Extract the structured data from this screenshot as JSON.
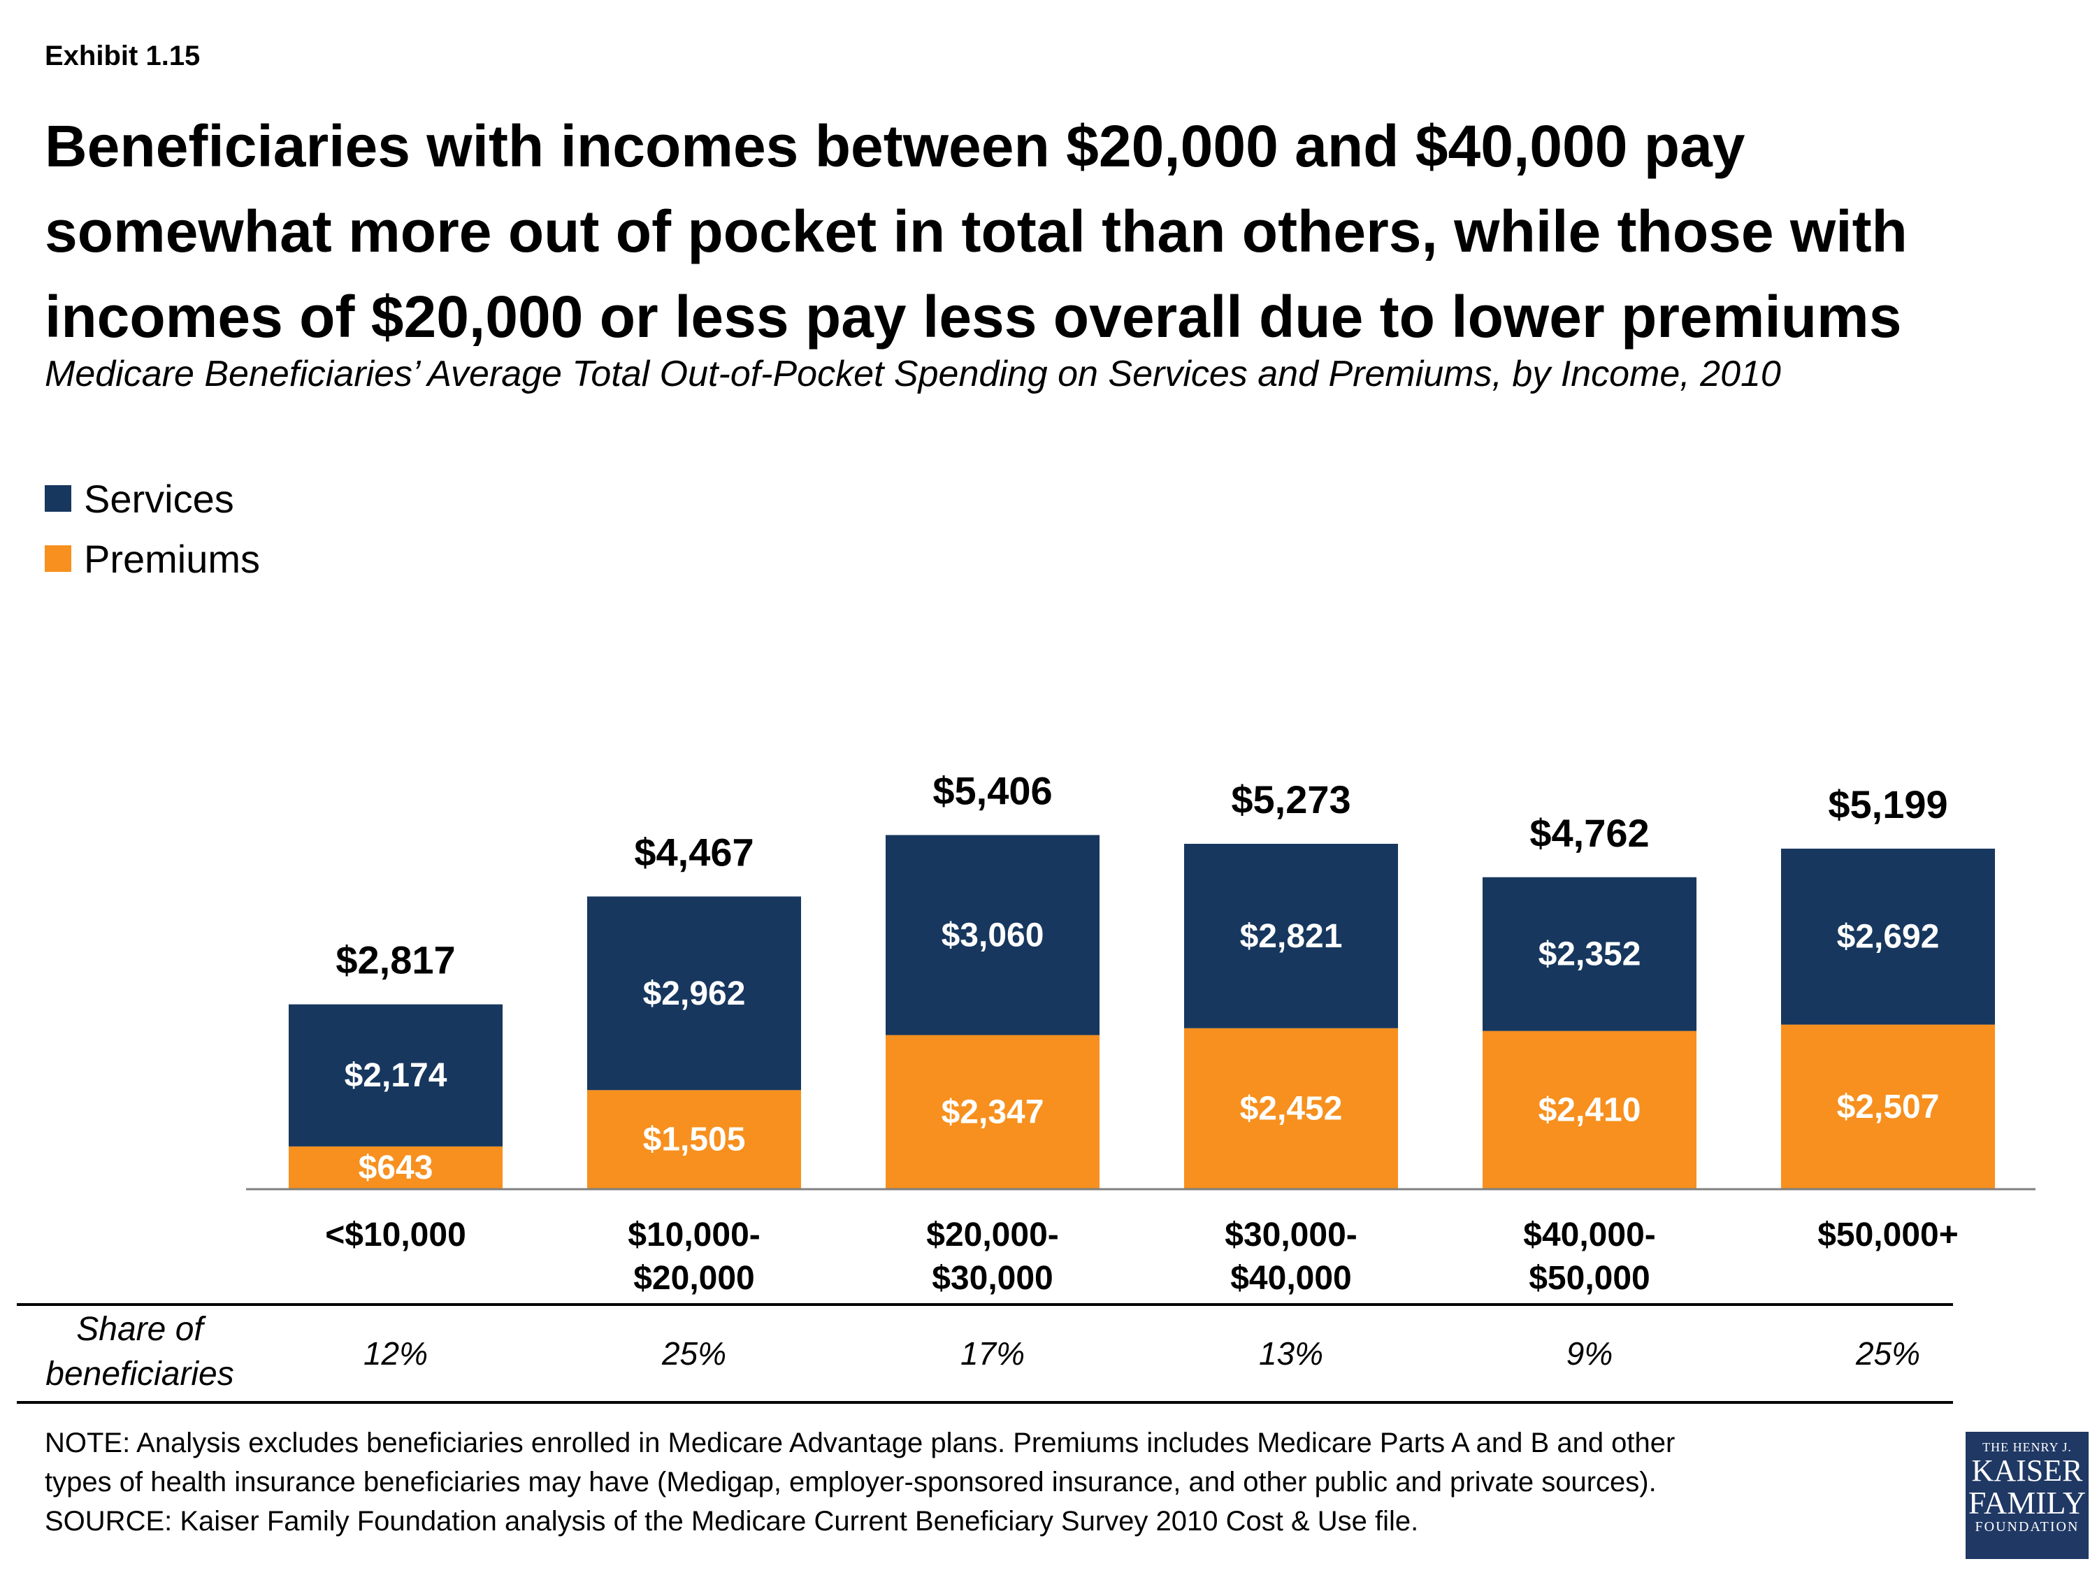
{
  "exhibit": "Exhibit 1.15",
  "title_lines": [
    "Beneficiaries with incomes between $20,000 and $40,000 pay",
    "somewhat more out of pocket in total than others, while those with",
    "incomes of $20,000 or less pay less overall due to lower premiums"
  ],
  "subtitle": "Medicare Beneficiaries’ Average Total Out-of-Pocket Spending on Services and Premiums, by Income, 2010",
  "legend": {
    "services": "Services",
    "premiums": "Premiums"
  },
  "colors": {
    "services": "#17375e",
    "premiums": "#f7901e",
    "axis": "#808080"
  },
  "chart_data": {
    "type": "bar",
    "stacked": true,
    "categories": [
      [
        "<$10,000"
      ],
      [
        "$10,000-",
        "$20,000"
      ],
      [
        "$20,000-",
        "$30,000"
      ],
      [
        "$30,000-",
        "$40,000"
      ],
      [
        "$40,000-",
        "$50,000"
      ],
      [
        "$50,000+"
      ]
    ],
    "series": [
      {
        "name": "Premiums",
        "values": [
          643,
          1505,
          2347,
          2452,
          2410,
          2507
        ],
        "labels": [
          "$643",
          "$1,505",
          "$2,347",
          "$2,452",
          "$2,410",
          "$2,507"
        ]
      },
      {
        "name": "Services",
        "values": [
          2174,
          2962,
          3060,
          2821,
          2352,
          2692
        ],
        "labels": [
          "$2,174",
          "$2,962",
          "$3,060",
          "$2,821",
          "$2,352",
          "$2,692"
        ]
      }
    ],
    "totals": [
      2817,
      4467,
      5406,
      5273,
      4762,
      5199
    ],
    "total_labels": [
      "$2,817",
      "$4,467",
      "$5,406",
      "$5,273",
      "$4,762",
      "$5,199"
    ],
    "ylim": [
      0,
      6000
    ],
    "legend_position": "top-left"
  },
  "share": {
    "label_lines": [
      "Share of",
      "beneficiaries"
    ],
    "values": [
      "12%",
      "25%",
      "17%",
      "13%",
      "9%",
      "25%"
    ]
  },
  "notes": [
    "NOTE: Analysis excludes beneficiaries enrolled in Medicare Advantage plans. Premiums includes Medicare Parts A and B and other",
    "types of health insurance beneficiaries may have (Medigap, employer-sponsored insurance, and other public and private sources).",
    "SOURCE: Kaiser Family Foundation analysis of the Medicare Current Beneficiary Survey 2010 Cost & Use file."
  ],
  "logo": {
    "line1": "THE HENRY J.",
    "line2": "KAISER",
    "line3": "FAMILY",
    "line4": "FOUNDATION"
  }
}
